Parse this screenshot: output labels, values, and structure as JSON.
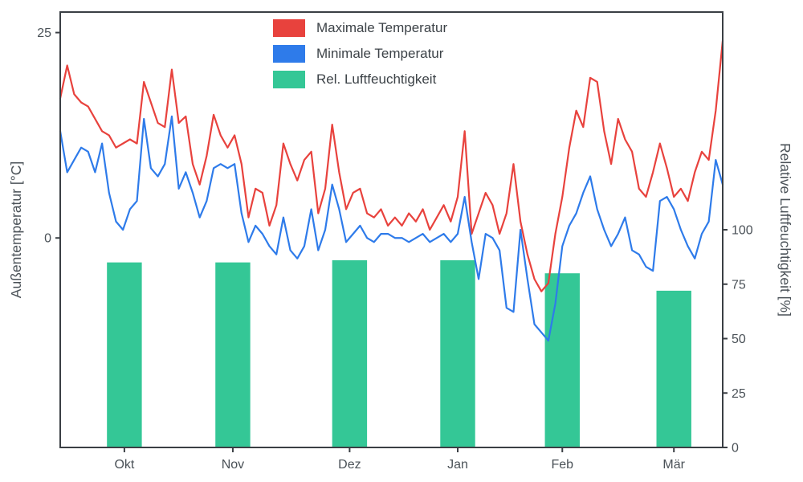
{
  "chart_data": {
    "type": "line+bar",
    "title": "",
    "xlabel": "",
    "ylabel_left": "Außentemperatur [°C]",
    "ylabel_right": "Relative Luftfeuchtigkeit [%]",
    "grid": false,
    "legend_position": "upper center",
    "xlim": [
      0,
      190
    ],
    "x_unit": "days from start (late Sep) ",
    "ylim_left": [
      -25.5,
      27.5
    ],
    "ylim_right": [
      0,
      200
    ],
    "yticks_left": [
      0,
      25
    ],
    "yticks_right": [
      0,
      25,
      50,
      75,
      100
    ],
    "xticks": {
      "labels": [
        "Okt",
        "Nov",
        "Dez",
        "Jan",
        "Feb",
        "Mär"
      ],
      "positions_days": [
        18.4,
        49.5,
        83,
        114,
        144,
        176
      ]
    },
    "colors": {
      "max_temp": "#e8423d",
      "min_temp": "#2e7bea",
      "humidity": "#34c796",
      "spine": "#3a3f44",
      "tick_text": "#4a5157"
    },
    "series": [
      {
        "id": "max-temp-line",
        "name": "Maximale Temperatur",
        "type": "line",
        "axis": "left",
        "color": "#e8423d",
        "x_step_days": 2,
        "values": [
          17,
          21,
          17.5,
          16.5,
          16,
          14.5,
          13,
          12.5,
          11,
          11.5,
          12,
          11.5,
          19,
          16.5,
          14,
          13.5,
          20.5,
          14,
          14.8,
          9,
          6.5,
          10,
          15,
          12.5,
          11,
          12.5,
          9,
          2.5,
          6,
          5.5,
          1.5,
          4,
          11.5,
          9,
          7,
          9.5,
          10.5,
          3,
          6,
          13.8,
          8,
          3.5,
          5.5,
          6,
          3,
          2.5,
          3.5,
          1.5,
          2.5,
          1.5,
          3,
          2,
          3.5,
          1,
          2.5,
          4,
          2,
          5,
          13,
          0.5,
          3,
          5.5,
          4,
          0.5,
          3,
          9,
          2,
          -2,
          -5,
          -6.5,
          -5.5,
          0.5,
          5,
          11,
          15.5,
          13.5,
          19.5,
          19,
          13,
          9,
          14.5,
          12,
          10.5,
          6,
          5,
          8,
          11.5,
          8.5,
          5,
          6,
          4.5,
          8,
          10.5,
          9.5,
          15.5,
          24
        ]
      },
      {
        "id": "min-temp-line",
        "name": "Minimale Temperatur",
        "type": "line",
        "axis": "left",
        "color": "#2e7bea",
        "x_step_days": 2,
        "values": [
          13,
          8,
          9.5,
          11,
          10.5,
          8,
          11.5,
          5.5,
          2,
          1,
          3.5,
          4.5,
          14.5,
          8.5,
          7.5,
          9,
          14.8,
          6,
          8,
          5.5,
          2.5,
          4.5,
          8.5,
          9,
          8.5,
          9,
          3,
          -0.5,
          1.5,
          0.5,
          -1,
          -2,
          2.5,
          -1.5,
          -2.5,
          -1,
          3.5,
          -1.5,
          1,
          6.5,
          3.5,
          -0.5,
          0.5,
          1.5,
          0,
          -0.5,
          0.5,
          0.5,
          0,
          0,
          -0.5,
          0,
          0.5,
          -0.5,
          0,
          0.5,
          -0.5,
          0.5,
          5,
          -0.5,
          -5,
          0.5,
          0,
          -1.5,
          -8.5,
          -9,
          1,
          -5,
          -10.5,
          -11.5,
          -12.5,
          -8,
          -1,
          1.5,
          3,
          5.5,
          7.5,
          3.5,
          1,
          -1,
          0.5,
          2.5,
          -1.5,
          -2,
          -3.5,
          -4,
          4.5,
          5,
          3.5,
          1,
          -1,
          -2.5,
          0.5,
          2,
          9.5,
          6.5
        ]
      },
      {
        "id": "humidity-bars",
        "name": "Rel. Luftfeuchtigkeit",
        "type": "bar",
        "axis": "right",
        "color": "#34c796",
        "positions_days": [
          18.4,
          49.5,
          83,
          114,
          144,
          176
        ],
        "bar_width_days": 10,
        "values": [
          85,
          85,
          86,
          86,
          80,
          72
        ]
      }
    ],
    "legend_entries": [
      "Maximale Temperatur",
      "Minimale Temperatur",
      "Rel. Luftfeuchtigkeit"
    ]
  }
}
